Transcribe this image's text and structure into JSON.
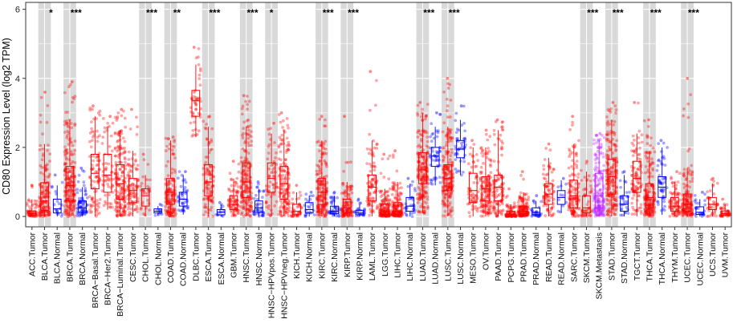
{
  "chart_data": {
    "type": "box",
    "title": "",
    "xlabel": "",
    "ylabel": "CD80 Expression Level (log2 TPM)",
    "ylim": [
      -0.3,
      6.2
    ],
    "yticks": [
      0,
      2,
      4,
      6
    ],
    "colors": {
      "tumor": "#ff0000",
      "normal": "#0000ff",
      "metastasis": "#bb22ff",
      "band": "#d9d9d9",
      "grid": "#ffffff"
    },
    "categories": [
      {
        "label": "ACC.Tumor",
        "group": "tumor",
        "q1": 0.03,
        "median": 0.08,
        "q3": 0.16,
        "lo": 0.0,
        "hi": 0.5,
        "max": 0.9,
        "n": 60,
        "sig": ""
      },
      {
        "label": "BLCA.Tumor",
        "group": "tumor",
        "q1": 0.18,
        "median": 0.45,
        "q3": 0.98,
        "lo": 0.0,
        "hi": 2.1,
        "max": 3.6,
        "n": 150,
        "sig": "*"
      },
      {
        "label": "BLCA.Normal",
        "group": "normal",
        "q1": 0.1,
        "median": 0.22,
        "q3": 0.5,
        "lo": 0.0,
        "hi": 0.9,
        "max": 1.2,
        "n": 18,
        "sig": ""
      },
      {
        "label": "BRCA.Tumor",
        "group": "tumor",
        "q1": 0.45,
        "median": 0.9,
        "q3": 1.45,
        "lo": 0.0,
        "hi": 2.8,
        "max": 3.9,
        "n": 220,
        "sig": "***"
      },
      {
        "label": "BRCA.Normal",
        "group": "normal",
        "q1": 0.12,
        "median": 0.25,
        "q3": 0.45,
        "lo": 0.0,
        "hi": 0.85,
        "max": 1.4,
        "n": 70,
        "sig": ""
      },
      {
        "label": "BRCA−Basal.Tumor",
        "group": "tumor",
        "q1": 0.8,
        "median": 1.25,
        "q3": 1.8,
        "lo": 0.0,
        "hi": 2.9,
        "max": 3.2,
        "n": 90,
        "sig": ""
      },
      {
        "label": "BRCA−Her2.Tumor",
        "group": "tumor",
        "q1": 0.7,
        "median": 1.2,
        "q3": 1.8,
        "lo": 0.2,
        "hi": 2.6,
        "max": 2.9,
        "n": 55,
        "sig": ""
      },
      {
        "label": "BRCA−Luminal.Tumor",
        "group": "tumor",
        "q1": 0.5,
        "median": 0.95,
        "q3": 1.5,
        "lo": 0.0,
        "hi": 2.5,
        "max": 3.1,
        "n": 180,
        "sig": ""
      },
      {
        "label": "CESC.Tumor",
        "group": "tumor",
        "q1": 0.4,
        "median": 0.75,
        "q3": 1.1,
        "lo": 0.0,
        "hi": 1.9,
        "max": 3.1,
        "n": 100,
        "sig": ""
      },
      {
        "label": "CHOL.Tumor",
        "group": "tumor",
        "q1": 0.3,
        "median": 0.6,
        "q3": 0.8,
        "lo": 0.0,
        "hi": 1.2,
        "max": 1.8,
        "n": 30,
        "sig": "***"
      },
      {
        "label": "CHOL.Normal",
        "group": "normal",
        "q1": 0.1,
        "median": 0.15,
        "q3": 0.22,
        "lo": 0.02,
        "hi": 0.3,
        "max": 0.35,
        "n": 9,
        "sig": ""
      },
      {
        "label": "COAD.Tumor",
        "group": "tumor",
        "q1": 0.35,
        "median": 0.7,
        "q3": 1.1,
        "lo": 0.0,
        "hi": 2.2,
        "max": 2.3,
        "n": 150,
        "sig": "**"
      },
      {
        "label": "COAD.Normal",
        "group": "normal",
        "q1": 0.3,
        "median": 0.5,
        "q3": 0.7,
        "lo": 0.05,
        "hi": 1.2,
        "max": 1.3,
        "n": 40,
        "sig": ""
      },
      {
        "label": "DLBC.Tumor",
        "group": "tumor",
        "q1": 2.9,
        "median": 3.35,
        "q3": 3.65,
        "lo": 2.3,
        "hi": 4.4,
        "max": 4.9,
        "n": 48,
        "sig": ""
      },
      {
        "label": "ESCA.Tumor",
        "group": "tumor",
        "q1": 0.6,
        "median": 1.0,
        "q3": 1.5,
        "lo": 0.0,
        "hi": 2.6,
        "max": 2.9,
        "n": 100,
        "sig": "***"
      },
      {
        "label": "ESCA.Normal",
        "group": "normal",
        "q1": 0.05,
        "median": 0.12,
        "q3": 0.2,
        "lo": 0.0,
        "hi": 0.35,
        "max": 0.4,
        "n": 11,
        "sig": ""
      },
      {
        "label": "GBM.Tumor",
        "group": "tumor",
        "q1": 0.2,
        "median": 0.35,
        "q3": 0.6,
        "lo": 0.0,
        "hi": 1.1,
        "max": 1.6,
        "n": 80,
        "sig": ""
      },
      {
        "label": "HNSC.Tumor",
        "group": "tumor",
        "q1": 0.55,
        "median": 1.0,
        "q3": 1.55,
        "lo": 0.0,
        "hi": 2.6,
        "max": 3.5,
        "n": 180,
        "sig": "***"
      },
      {
        "label": "HNSC.Normal",
        "group": "normal",
        "q1": 0.12,
        "median": 0.25,
        "q3": 0.45,
        "lo": 0.0,
        "hi": 0.8,
        "max": 1.0,
        "n": 40,
        "sig": ""
      },
      {
        "label": "HNSC−HPVpos.Tumor",
        "group": "tumor",
        "q1": 0.7,
        "median": 1.1,
        "q3": 1.55,
        "lo": 0.0,
        "hi": 2.4,
        "max": 2.7,
        "n": 60,
        "sig": "*"
      },
      {
        "label": "HNSC−HPVneg.Tumor",
        "group": "tumor",
        "q1": 0.5,
        "median": 0.95,
        "q3": 1.45,
        "lo": 0.0,
        "hi": 2.5,
        "max": 3.0,
        "n": 150,
        "sig": ""
      },
      {
        "label": "KICH.Tumor",
        "group": "tumor",
        "q1": 0.05,
        "median": 0.15,
        "q3": 0.35,
        "lo": 0.0,
        "hi": 0.7,
        "max": 0.9,
        "n": 40,
        "sig": ""
      },
      {
        "label": "KICH.Normal",
        "group": "normal",
        "q1": 0.1,
        "median": 0.2,
        "q3": 0.4,
        "lo": 0.0,
        "hi": 0.6,
        "max": 0.7,
        "n": 20,
        "sig": ""
      },
      {
        "label": "KIRC.Tumor",
        "group": "tumor",
        "q1": 0.35,
        "median": 0.7,
        "q3": 1.1,
        "lo": 0.0,
        "hi": 2.2,
        "max": 2.9,
        "n": 180,
        "sig": "***"
      },
      {
        "label": "KIRC.Normal",
        "group": "normal",
        "q1": 0.08,
        "median": 0.15,
        "q3": 0.3,
        "lo": 0.0,
        "hi": 0.6,
        "max": 0.7,
        "n": 40,
        "sig": ""
      },
      {
        "label": "KIRP.Tumor",
        "group": "tumor",
        "q1": 0.1,
        "median": 0.25,
        "q3": 0.5,
        "lo": 0.0,
        "hi": 1.0,
        "max": 2.9,
        "n": 120,
        "sig": "***"
      },
      {
        "label": "KIRP.Normal",
        "group": "normal",
        "q1": 0.05,
        "median": 0.1,
        "q3": 0.18,
        "lo": 0.0,
        "hi": 0.35,
        "max": 0.5,
        "n": 25,
        "sig": ""
      },
      {
        "label": "LAML.Tumor",
        "group": "tumor",
        "q1": 0.45,
        "median": 0.85,
        "q3": 1.2,
        "lo": 0.0,
        "hi": 2.2,
        "max": 4.2,
        "n": 90,
        "sig": ""
      },
      {
        "label": "LGG.Tumor",
        "group": "tumor",
        "q1": 0.05,
        "median": 0.15,
        "q3": 0.35,
        "lo": 0.0,
        "hi": 0.8,
        "max": 1.8,
        "n": 150,
        "sig": ""
      },
      {
        "label": "LIHC.Tumor",
        "group": "tumor",
        "q1": 0.05,
        "median": 0.15,
        "q3": 0.4,
        "lo": 0.0,
        "hi": 1.0,
        "max": 1.9,
        "n": 150,
        "sig": ""
      },
      {
        "label": "LIHC.Normal",
        "group": "normal",
        "q1": 0.15,
        "median": 0.3,
        "q3": 0.55,
        "lo": 0.0,
        "hi": 0.95,
        "max": 1.1,
        "n": 30,
        "sig": ""
      },
      {
        "label": "LUAD.Tumor",
        "group": "tumor",
        "q1": 0.95,
        "median": 1.35,
        "q3": 1.85,
        "lo": 0.1,
        "hi": 3.0,
        "max": 3.3,
        "n": 200,
        "sig": "***"
      },
      {
        "label": "LUAD.Normal",
        "group": "normal",
        "q1": 1.45,
        "median": 1.75,
        "q3": 2.0,
        "lo": 0.9,
        "hi": 2.6,
        "max": 3.0,
        "n": 50,
        "sig": ""
      },
      {
        "label": "LUSC.Tumor",
        "group": "tumor",
        "q1": 0.75,
        "median": 1.1,
        "q3": 1.5,
        "lo": 0.0,
        "hi": 2.6,
        "max": 4.0,
        "n": 200,
        "sig": "***"
      },
      {
        "label": "LUSC.Normal",
        "group": "normal",
        "q1": 1.7,
        "median": 1.95,
        "q3": 2.2,
        "lo": 1.2,
        "hi": 2.8,
        "max": 3.2,
        "n": 45,
        "sig": ""
      },
      {
        "label": "MESO.Tumor",
        "group": "tumor",
        "q1": 0.4,
        "median": 0.75,
        "q3": 1.25,
        "lo": 0.0,
        "hi": 2.0,
        "max": 2.2,
        "n": 60,
        "sig": ""
      },
      {
        "label": "OV.Tumor",
        "group": "tumor",
        "q1": 0.45,
        "median": 0.8,
        "q3": 1.15,
        "lo": 0.0,
        "hi": 2.0,
        "max": 2.5,
        "n": 150,
        "sig": ""
      },
      {
        "label": "PAAD.Tumor",
        "group": "tumor",
        "q1": 0.45,
        "median": 0.85,
        "q3": 1.2,
        "lo": 0.0,
        "hi": 2.5,
        "max": 2.8,
        "n": 110,
        "sig": ""
      },
      {
        "label": "PCPG.Tumor",
        "group": "tumor",
        "q1": 0.02,
        "median": 0.06,
        "q3": 0.15,
        "lo": 0.0,
        "hi": 0.35,
        "max": 0.8,
        "n": 100,
        "sig": ""
      },
      {
        "label": "PRAD.Tumor",
        "group": "tumor",
        "q1": 0.05,
        "median": 0.15,
        "q3": 0.3,
        "lo": 0.0,
        "hi": 0.7,
        "max": 1.3,
        "n": 150,
        "sig": ""
      },
      {
        "label": "PRAD.Normal",
        "group": "normal",
        "q1": 0.05,
        "median": 0.12,
        "q3": 0.25,
        "lo": 0.0,
        "hi": 0.45,
        "max": 0.6,
        "n": 30,
        "sig": ""
      },
      {
        "label": "READ.Tumor",
        "group": "tumor",
        "q1": 0.35,
        "median": 0.65,
        "q3": 0.95,
        "lo": 0.0,
        "hi": 1.7,
        "max": 2.1,
        "n": 80,
        "sig": ""
      },
      {
        "label": "READ.Normal",
        "group": "normal",
        "q1": 0.35,
        "median": 0.55,
        "q3": 0.75,
        "lo": 0.1,
        "hi": 1.05,
        "max": 1.1,
        "n": 10,
        "sig": ""
      },
      {
        "label": "SARC.Tumor",
        "group": "tumor",
        "q1": 0.25,
        "median": 0.6,
        "q3": 1.05,
        "lo": 0.0,
        "hi": 2.1,
        "max": 2.9,
        "n": 130,
        "sig": ""
      },
      {
        "label": "SKCM.Tumor",
        "group": "tumor",
        "q1": 0.1,
        "median": 0.25,
        "q3": 0.6,
        "lo": 0.0,
        "hi": 1.3,
        "max": 1.6,
        "n": 50,
        "sig": "***"
      },
      {
        "label": "SKCM.Metastasis",
        "group": "metastasis",
        "q1": 0.25,
        "median": 0.6,
        "q3": 1.25,
        "lo": 0.0,
        "hi": 2.2,
        "max": 2.4,
        "n": 180,
        "sig": ""
      },
      {
        "label": "STAD.Tumor",
        "group": "tumor",
        "q1": 0.65,
        "median": 1.15,
        "q3": 1.65,
        "lo": 0.0,
        "hi": 2.8,
        "max": 3.3,
        "n": 200,
        "sig": "***"
      },
      {
        "label": "STAD.Normal",
        "group": "normal",
        "q1": 0.15,
        "median": 0.35,
        "q3": 0.6,
        "lo": 0.0,
        "hi": 1.2,
        "max": 1.3,
        "n": 30,
        "sig": ""
      },
      {
        "label": "TGCT.Tumor",
        "group": "tumor",
        "q1": 0.7,
        "median": 1.1,
        "q3": 1.6,
        "lo": 0.0,
        "hi": 2.4,
        "max": 3.3,
        "n": 100,
        "sig": ""
      },
      {
        "label": "THCA.Tumor",
        "group": "tumor",
        "q1": 0.25,
        "median": 0.55,
        "q3": 0.95,
        "lo": 0.0,
        "hi": 1.9,
        "max": 2.8,
        "n": 180,
        "sig": "***"
      },
      {
        "label": "THCA.Normal",
        "group": "normal",
        "q1": 0.55,
        "median": 0.85,
        "q3": 1.15,
        "lo": 0.05,
        "hi": 2.0,
        "max": 2.2,
        "n": 50,
        "sig": ""
      },
      {
        "label": "THYM.Tumor",
        "group": "tumor",
        "q1": 0.15,
        "median": 0.3,
        "q3": 0.55,
        "lo": 0.0,
        "hi": 1.0,
        "max": 1.3,
        "n": 80,
        "sig": ""
      },
      {
        "label": "UCEC.Tumor",
        "group": "tumor",
        "q1": 0.15,
        "median": 0.35,
        "q3": 0.65,
        "lo": 0.0,
        "hi": 1.4,
        "max": 4.0,
        "n": 150,
        "sig": "***"
      },
      {
        "label": "UCEC.Normal",
        "group": "normal",
        "q1": 0.06,
        "median": 0.12,
        "q3": 0.28,
        "lo": 0.0,
        "hi": 0.5,
        "max": 0.7,
        "n": 25,
        "sig": ""
      },
      {
        "label": "UCS.Tumor",
        "group": "tumor",
        "q1": 0.2,
        "median": 0.35,
        "q3": 0.55,
        "lo": 0.0,
        "hi": 0.95,
        "max": 1.1,
        "n": 40,
        "sig": ""
      },
      {
        "label": "UVM.Tumor",
        "group": "tumor",
        "q1": 0.03,
        "median": 0.08,
        "q3": 0.16,
        "lo": 0.0,
        "hi": 0.35,
        "max": 0.5,
        "n": 45,
        "sig": ""
      }
    ],
    "bands": [
      1,
      3,
      9,
      11,
      14,
      17,
      19,
      23,
      25,
      31,
      33,
      44,
      46,
      49,
      52
    ]
  }
}
